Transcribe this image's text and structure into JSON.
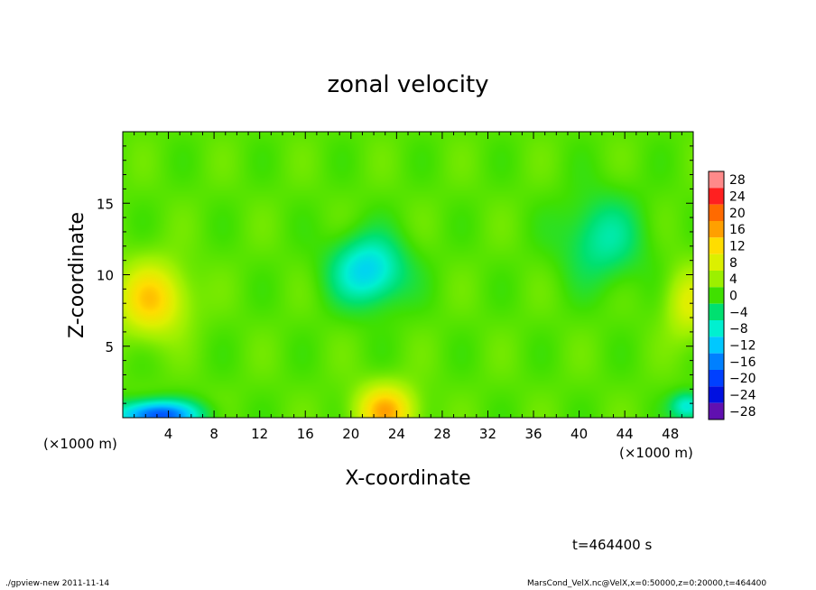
{
  "chart_data": {
    "type": "heatmap",
    "title": "zonal velocity",
    "xlabel": "X-coordinate",
    "ylabel": "Z-coordinate",
    "x_unit_label": "(×1000 m)",
    "x_unit_label_right": "(×1000 m)",
    "xlim": [
      0,
      50
    ],
    "ylim": [
      0,
      20
    ],
    "x_ticks": [
      4,
      8,
      12,
      16,
      20,
      24,
      28,
      32,
      36,
      40,
      44,
      48
    ],
    "y_ticks": [
      5,
      10,
      15
    ],
    "colorbar_levels": [
      28,
      24,
      20,
      16,
      12,
      8,
      4,
      0,
      -4,
      -8,
      -12,
      -16,
      -20,
      -24,
      -28
    ],
    "colorbar_colors": [
      "#ff8a8a",
      "#ff2020",
      "#ff6a00",
      "#ffa000",
      "#ffdd00",
      "#dcf000",
      "#9cf000",
      "#40e000",
      "#00e070",
      "#00f0d0",
      "#00c8ff",
      "#0080ff",
      "#0040ff",
      "#0010e0",
      "#6010b0"
    ],
    "field_features": [
      {
        "x": 23,
        "z": 0.5,
        "value": 14,
        "sx": 2.5,
        "sz": 1.8
      },
      {
        "x": 21.5,
        "z": 10.3,
        "value": -12,
        "sx": 3.2,
        "sz": 2.4
      },
      {
        "x": 2.5,
        "z": 8.3,
        "value": 12,
        "sx": 3.0,
        "sz": 2.5
      },
      {
        "x": 3.0,
        "z": 0.2,
        "value": -20,
        "sx": 3.5,
        "sz": 1.0
      },
      {
        "x": 42,
        "z": 12.5,
        "value": -7,
        "sx": 3.5,
        "sz": 3.0
      },
      {
        "x": 49.5,
        "z": 8,
        "value": 7,
        "sx": 2.0,
        "sz": 2.5
      },
      {
        "x": 49.5,
        "z": 0.8,
        "value": -10,
        "sx": 1.5,
        "sz": 1.0
      }
    ],
    "background_value": 1,
    "time_label": "t=464400 s"
  },
  "footer": {
    "left": "./gpview-new  2011-11-14",
    "right": "MarsCond_VelX.nc@VelX,x=0:50000,z=0:20000,t=464400"
  }
}
